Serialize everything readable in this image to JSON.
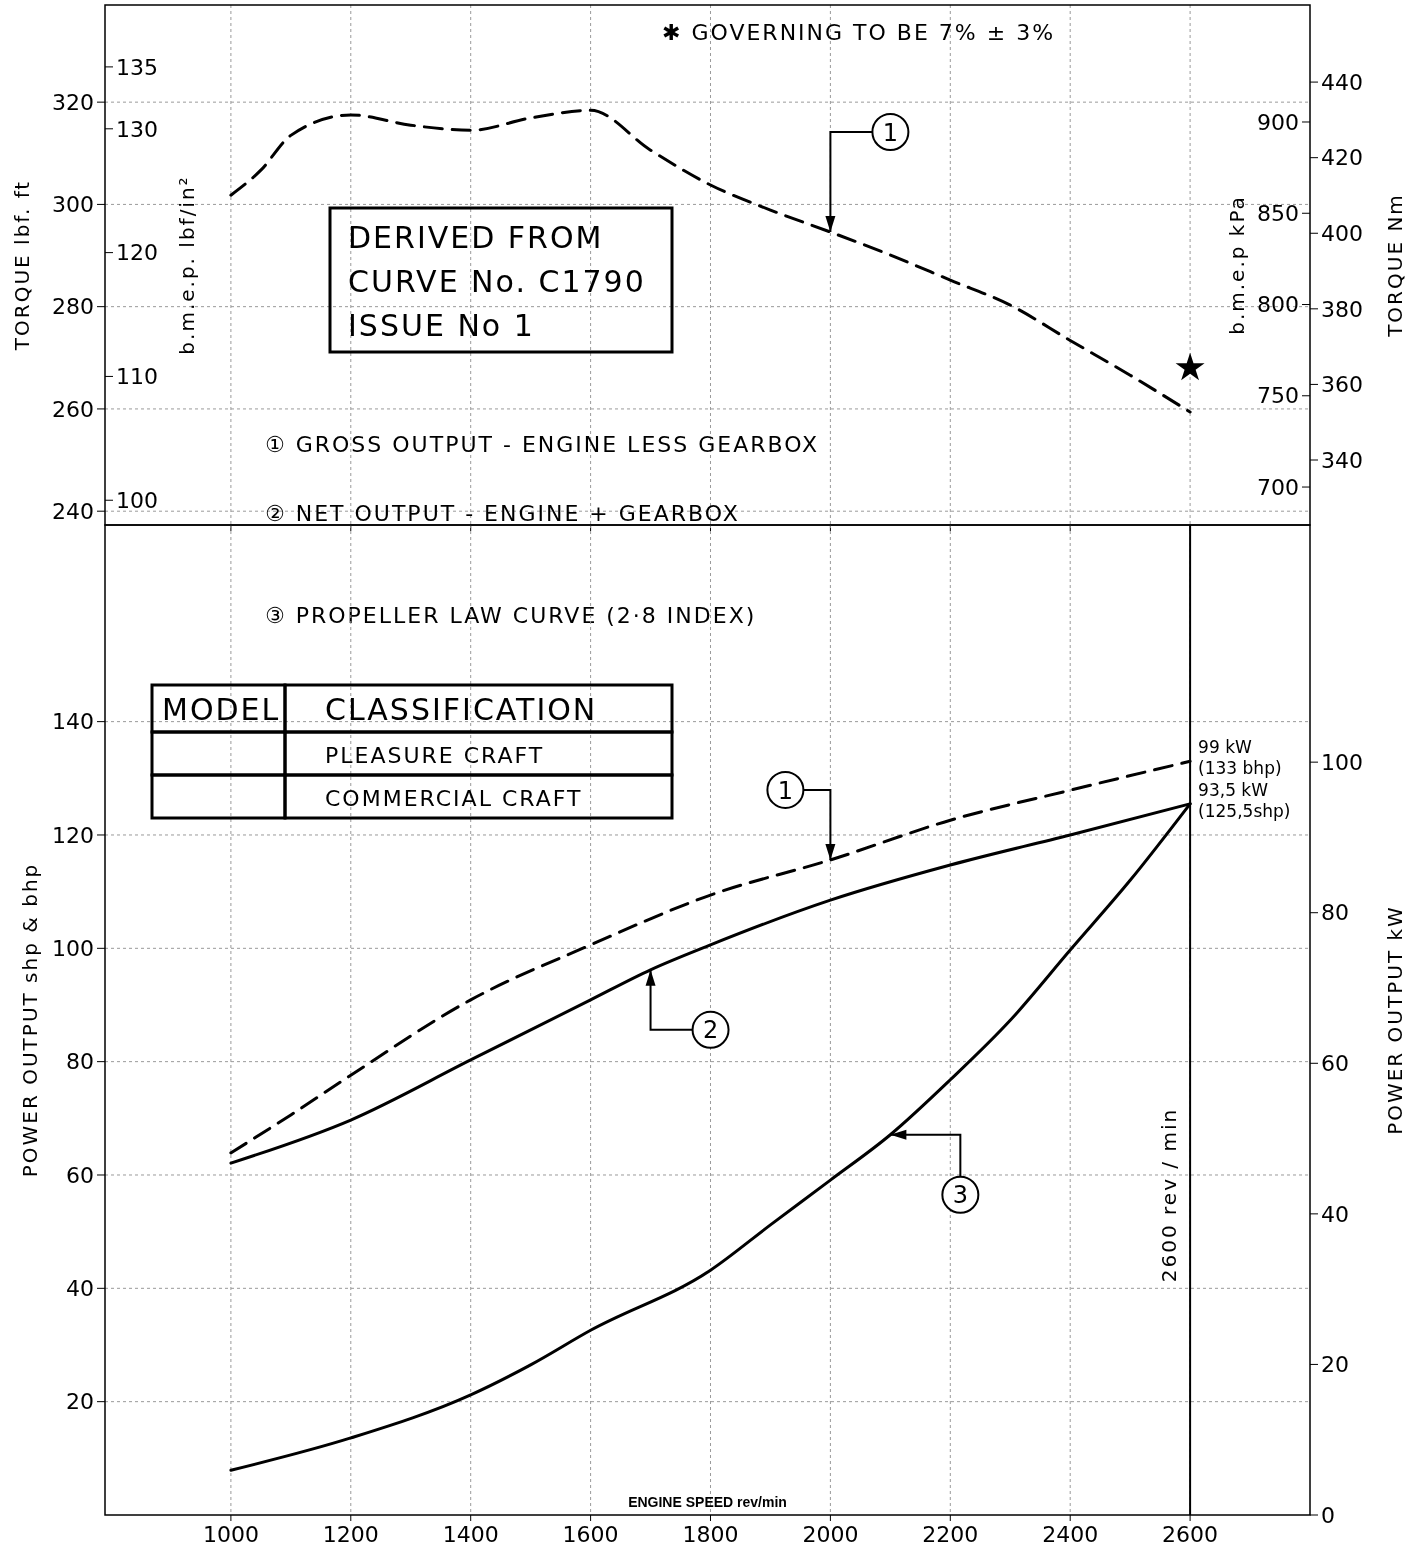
{
  "chart_data": [
    {
      "type": "line",
      "xlim": [
        790,
        2800
      ],
      "xticks": [
        1000,
        1200,
        1400,
        1600,
        1800,
        2000,
        2200,
        2400,
        2600
      ],
      "tick_labels": "y",
      "ylim": [
        237.3,
        339
      ],
      "yticks": [
        240,
        260,
        280,
        300,
        320
      ],
      "ylabel": "TORQUE lbf. ft",
      "y2label": "b.m.e.p. lbf/in²",
      "y2lim": [
        98.0,
        140.0
      ],
      "y2ticks": [
        100,
        110,
        120,
        130,
        135
      ],
      "y3label": "b.m.e.p kPa",
      "y3lim": [
        679.2,
        964.1
      ],
      "y3ticks": [
        700,
        750,
        800,
        850,
        900
      ],
      "grid": true,
      "series": [
        {
          "name": "1",
          "color": "#000000",
          "line_style": "dashed",
          "x": [
            1000,
            1050,
            1100,
            1200,
            1300,
            1400,
            1500,
            1600,
            1700,
            1800,
            1900,
            2000,
            2100,
            2200,
            2300,
            2400,
            2500,
            2600
          ],
          "values": [
            301.8,
            306.7,
            313.5,
            317.5,
            315.5,
            314.5,
            316.9,
            318.4,
            310.6,
            303.8,
            298.9,
            294.6,
            290.1,
            285.2,
            280.3,
            273.4,
            266.6,
            259.4
          ]
        },
        {
          "type": "scatter",
          "marker": "star",
          "color": "#000000",
          "x": [
            2600
          ],
          "values": [
            268
          ]
        }
      ],
      "annotations": [
        "✱ GOVERNING TO BE 7% ± 3%",
        "DERIVED FROM",
        "CURVE No. C1790",
        "ISSUE No 1",
        "① GROSS OUTPUT - ENGINE LESS GEARBOX",
        "② NET OUTPUT - ENGINE + GEARBOX",
        "③ PROPELLER LAW CURVE (2·8 INDEX)"
      ]
    },
    {
      "type": "line",
      "xlim": [
        790,
        2800
      ],
      "xticks": [
        1000,
        1200,
        1400,
        1600,
        1800,
        2000,
        2200,
        2400,
        2600
      ],
      "xlabel": "ENGINE SPEED rev/min",
      "ylim": [
        0,
        174.7
      ],
      "yticks": [
        20,
        40,
        60,
        80,
        100,
        120,
        140
      ],
      "ylabel": "POWER OUTPUT shp & bhp",
      "y2label": "POWER OUTPUT kW",
      "y2lim": [
        0,
        131.5
      ],
      "y2ticks": [
        0,
        20,
        40,
        60,
        80,
        100
      ],
      "grid": true,
      "series": [
        {
          "name": "1",
          "color": "#000000",
          "line_style": "dashed",
          "x": [
            1000,
            1100,
            1200,
            1400,
            1600,
            1800,
            2000,
            2200,
            2400,
            2600
          ],
          "values": [
            63.9,
            70.6,
            77.6,
            90.9,
            100.6,
            109.4,
            115.6,
            122.6,
            127.9,
            133
          ]
        },
        {
          "name": "2",
          "color": "#000000",
          "line_style": "solid",
          "x": [
            1000,
            1200,
            1400,
            1600,
            1700,
            1800,
            2000,
            2200,
            2400,
            2600
          ],
          "values": [
            62.1,
            69.7,
            80.3,
            90.9,
            96.2,
            100.6,
            108.5,
            114.7,
            120,
            125.5
          ]
        },
        {
          "name": "3",
          "color": "#000000",
          "line_style": "solid",
          "x": [
            1000,
            1200,
            1400,
            1500,
            1600,
            1800,
            1900,
            2000,
            2100,
            2200,
            2300,
            2400,
            2500,
            2600
          ],
          "values": [
            7.9,
            13.6,
            21.2,
            26.5,
            32.6,
            43.2,
            51.2,
            59.1,
            67.1,
            76.8,
            87.3,
            99.7,
            112,
            125.5
          ]
        }
      ],
      "ref_lines": [
        {
          "axis": "x",
          "value": 2600,
          "label": "2600 rev / min"
        }
      ],
      "annotations": [
        "MODEL",
        "CLASSIFICATION",
        "PLEASURE CRAFT",
        "COMMERCIAL CRAFT",
        {
          "text": "99 kW (133 bhp)",
          "x": 2600,
          "y": 133
        },
        {
          "text": "93,5 kW (125,5shp)",
          "x": 2600,
          "y": 125.5
        }
      ]
    },
    {
      "type": "line",
      "xlim": [
        790,
        2800
      ],
      "tick_labels": "y",
      "ylim": [
        322.8,
        460.4
      ],
      "yticks": [
        340,
        360,
        380,
        400,
        420,
        440
      ],
      "ylabel": "TORQUE Nm"
    }
  ]
}
